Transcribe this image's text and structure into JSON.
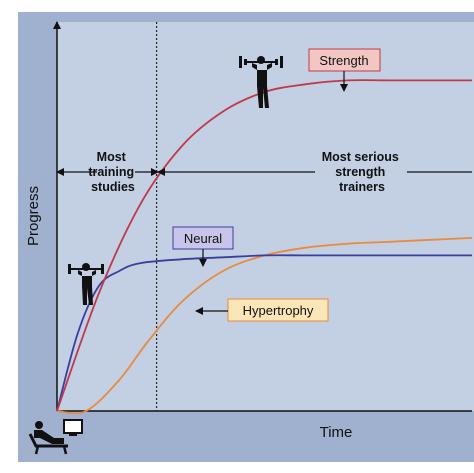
{
  "chart_data": {
    "type": "line",
    "title": "",
    "xlabel": "Time",
    "ylabel": "Progress",
    "xlim": [
      0,
      100
    ],
    "ylim": [
      0,
      100
    ],
    "grid": false,
    "series": [
      {
        "name": "Strength",
        "color": "#c0394b",
        "x": [
          0,
          10,
          20,
          30,
          40,
          50,
          60,
          70,
          80,
          90,
          100
        ],
        "y": [
          0,
          30,
          53,
          68,
          77,
          82,
          84,
          85,
          85,
          85,
          85
        ]
      },
      {
        "name": "Neural",
        "color": "#3a3f9e",
        "x": [
          0,
          5,
          10,
          15,
          20,
          30,
          40,
          50,
          60,
          70,
          80,
          90,
          100
        ],
        "y": [
          0,
          20,
          32,
          36,
          38,
          39,
          39.5,
          40,
          40,
          40,
          40,
          40,
          40
        ]
      },
      {
        "name": "Hypertrophy",
        "color": "#e98a3e",
        "x": [
          0,
          7,
          15,
          22,
          30,
          40,
          50,
          60,
          70,
          80,
          90,
          100
        ],
        "y": [
          0,
          0,
          8,
          18,
          28,
          36,
          40,
          42,
          43,
          43.5,
          44,
          44.5
        ]
      }
    ],
    "annotations": {
      "left_region": "Most training studies",
      "right_region": "Most serious strength trainers",
      "divider_x": 24
    }
  },
  "colors": {
    "plot_bg": "#c3cfe2",
    "axis_band": "#9fb1cf",
    "strength_box": "#f2c7c2",
    "neural_box": "#c9c4ea",
    "hypertrophy_box": "#fbe6b8"
  },
  "icons": {
    "weightlifter_large": "weightlifter-icon",
    "weightlifter_small": "weightlifter-icon",
    "couch": "couch-potato-icon"
  }
}
